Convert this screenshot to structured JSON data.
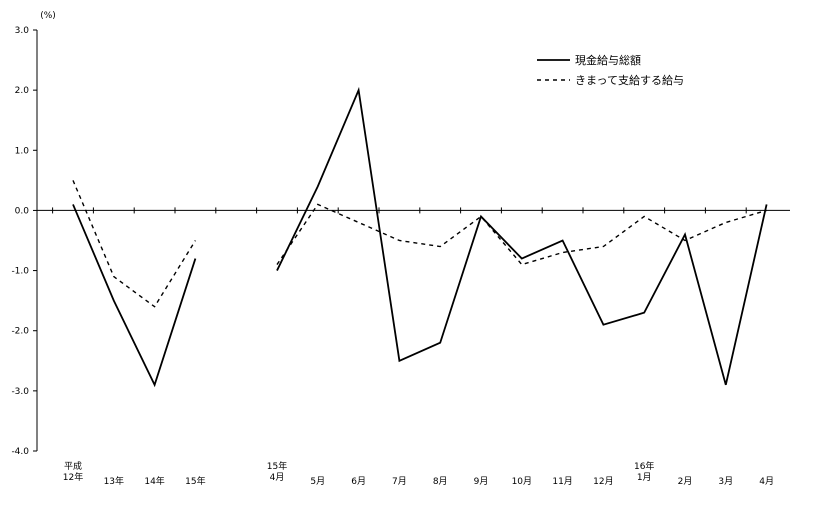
{
  "chart_data": {
    "type": "line",
    "unit_label": "(%)",
    "categories": [
      "平成\n12年",
      "13年",
      "14年",
      "15年",
      null,
      "15年\n4月",
      "5月",
      "6月",
      "7月",
      "8月",
      "9月",
      "10月",
      "11月",
      "12月",
      "16年\n1月",
      "2月",
      "3月",
      "4月"
    ],
    "series": [
      {
        "name": "現金給与総額",
        "color": "#000000",
        "dash": "none",
        "values": [
          0.1,
          -1.5,
          -2.9,
          -0.8,
          null,
          -1.0,
          0.4,
          2.0,
          -2.5,
          -2.2,
          -0.1,
          -0.8,
          -0.5,
          -1.9,
          -1.7,
          -0.4,
          -2.9,
          0.1
        ]
      },
      {
        "name": "きまって支給する給与",
        "color": "#000000",
        "dash": "4,4",
        "values": [
          0.5,
          -1.1,
          -1.6,
          -0.5,
          null,
          -0.9,
          0.1,
          -0.2,
          -0.5,
          -0.6,
          -0.1,
          -0.9,
          -0.7,
          -0.6,
          -0.1,
          -0.5,
          -0.2,
          0.0
        ]
      }
    ],
    "ylim": [
      -4,
      3
    ],
    "yticks": [
      {
        "value": -4,
        "label": "-4.0"
      },
      {
        "value": -3,
        "label": "-3.0"
      },
      {
        "value": -2,
        "label": "-2.0"
      },
      {
        "value": -1,
        "label": "-1.0"
      },
      {
        "value": 0,
        "label": "0.0"
      },
      {
        "value": 1,
        "label": "1.0"
      },
      {
        "value": 2,
        "label": "2.0"
      },
      {
        "value": 3,
        "label": "3.0"
      }
    ],
    "legend": "top-right"
  }
}
